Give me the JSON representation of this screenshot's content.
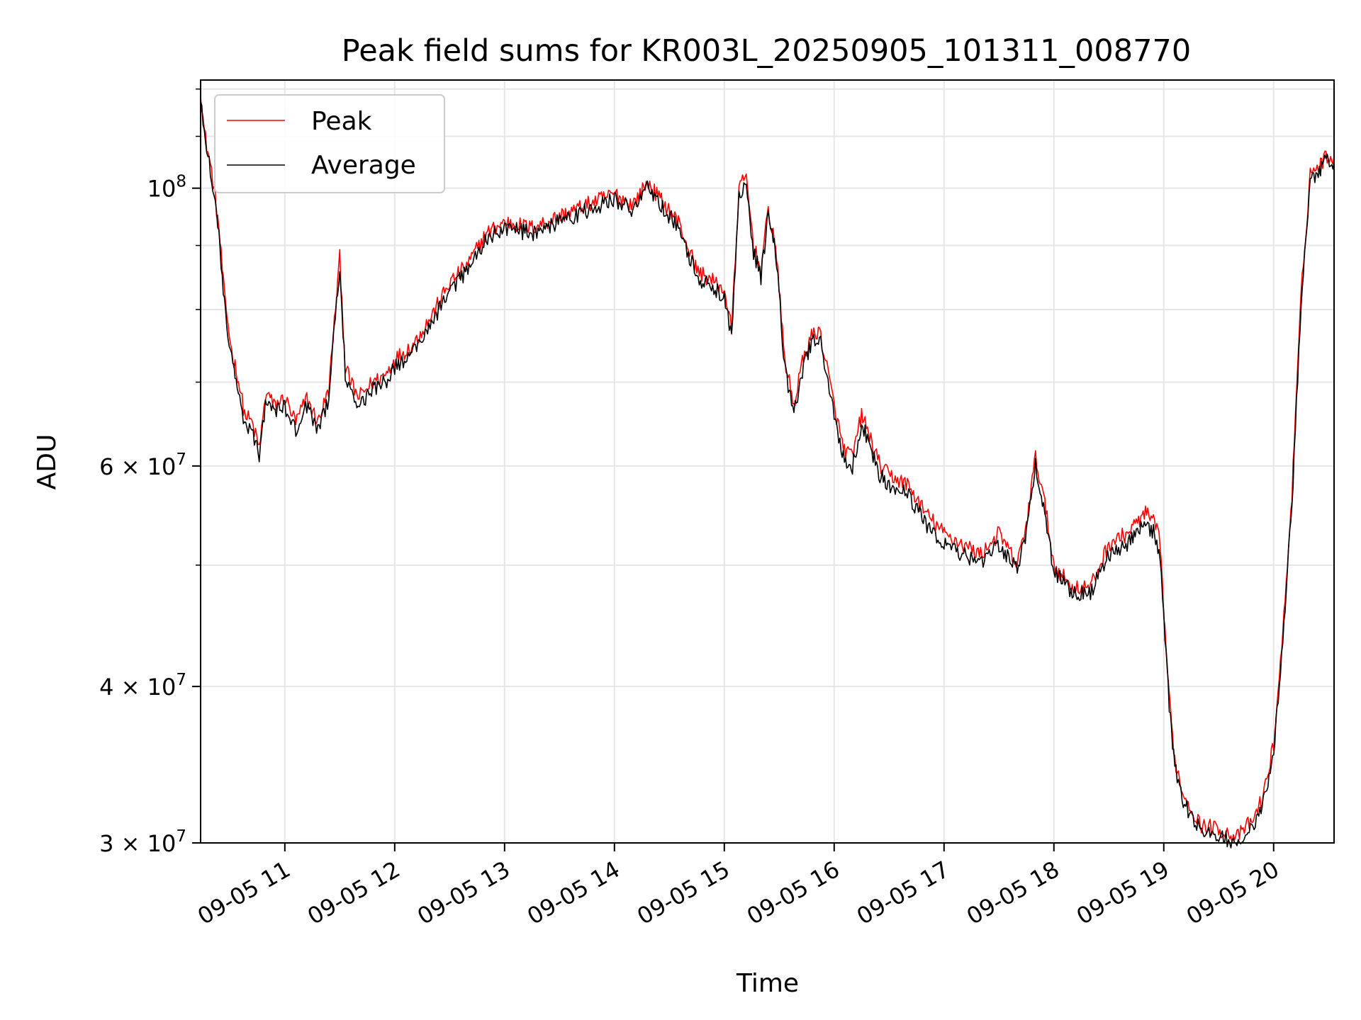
{
  "chart_data": {
    "type": "line",
    "title": "Peak field sums for KR003L_20250905_101311_008770",
    "xlabel": "Time",
    "ylabel": "ADU",
    "yscale": "log",
    "ylim": [
      30000000,
      122000000
    ],
    "xlim": [
      "09-05 10:14",
      "09-05 20:33"
    ],
    "grid": true,
    "legend": {
      "placement": "top-left",
      "entries": [
        "Peak",
        "Average"
      ]
    },
    "x_ticks": [
      "09-05 11",
      "09-05 12",
      "09-05 13",
      "09-05 14",
      "09-05 15",
      "09-05 16",
      "09-05 17",
      "09-05 18",
      "09-05 19",
      "09-05 20"
    ],
    "y_ticks": [
      {
        "value": 100000000,
        "base": "10",
        "exp": "8"
      },
      {
        "value": 60000000,
        "base": "6 × 10",
        "exp": "7"
      },
      {
        "value": 40000000,
        "base": "4 × 10",
        "exp": "7"
      },
      {
        "value": 30000000,
        "base": "3 × 10",
        "exp": "7"
      }
    ],
    "colors": {
      "Peak": "#ff0000",
      "Average": "#000000"
    },
    "x": [
      "09-05 10:14",
      "09-05 10:16",
      "09-05 10:20",
      "09-05 10:24",
      "09-05 10:27",
      "09-05 10:31",
      "09-05 10:34",
      "09-05 10:38",
      "09-05 10:42",
      "09-05 10:46",
      "09-05 10:50",
      "09-05 10:54",
      "09-05 11:00",
      "09-05 11:06",
      "09-05 11:12",
      "09-05 11:18",
      "09-05 11:24",
      "09-05 11:27",
      "09-05 11:30",
      "09-05 11:33",
      "09-05 11:36",
      "09-05 11:40",
      "09-05 11:48",
      "09-05 11:55",
      "09-05 12:00",
      "09-05 12:10",
      "09-05 12:20",
      "09-05 12:30",
      "09-05 12:40",
      "09-05 12:50",
      "09-05 13:00",
      "09-05 13:15",
      "09-05 13:30",
      "09-05 13:45",
      "09-05 14:00",
      "09-05 14:10",
      "09-05 14:18",
      "09-05 14:25",
      "09-05 14:35",
      "09-05 14:45",
      "09-05 14:55",
      "09-05 15:00",
      "09-05 15:04",
      "09-05 15:08",
      "09-05 15:12",
      "09-05 15:16",
      "09-05 15:20",
      "09-05 15:24",
      "09-05 15:28",
      "09-05 15:33",
      "09-05 15:38",
      "09-05 15:42",
      "09-05 15:47",
      "09-05 15:52",
      "09-05 15:56",
      "09-05 16:00",
      "09-05 16:05",
      "09-05 16:10",
      "09-05 16:15",
      "09-05 16:20",
      "09-05 16:25",
      "09-05 16:30",
      "09-05 16:40",
      "09-05 16:50",
      "09-05 17:00",
      "09-05 17:10",
      "09-05 17:20",
      "09-05 17:30",
      "09-05 17:40",
      "09-05 17:45",
      "09-05 17:50",
      "09-05 17:55",
      "09-05 18:00",
      "09-05 18:10",
      "09-05 18:20",
      "09-05 18:30",
      "09-05 18:40",
      "09-05 18:45",
      "09-05 18:50",
      "09-05 18:55",
      "09-05 18:58",
      "09-05 19:00",
      "09-05 19:03",
      "09-05 19:06",
      "09-05 19:10",
      "09-05 19:20",
      "09-05 19:30",
      "09-05 19:40",
      "09-05 19:50",
      "09-05 19:55",
      "09-05 20:00",
      "09-05 20:05",
      "09-05 20:10",
      "09-05 20:15",
      "09-05 20:20",
      "09-05 20:25",
      "09-05 20:28",
      "09-05 20:33"
    ],
    "series": [
      {
        "name": "Peak",
        "values": [
          120000000,
          111000000,
          103000000,
          93000000,
          82000000,
          74000000,
          71000000,
          66000000,
          65000000,
          62000000,
          69000000,
          67000000,
          68000000,
          65000000,
          68000000,
          65000000,
          69000000,
          78000000,
          88000000,
          72000000,
          70000000,
          68000000,
          70000000,
          71000000,
          73000000,
          75000000,
          79000000,
          84000000,
          87000000,
          92000000,
          94000000,
          93000000,
          95000000,
          97000000,
          99000000,
          97000000,
          101000000,
          98000000,
          94000000,
          86000000,
          84000000,
          83000000,
          77000000,
          100000000,
          102000000,
          90000000,
          86000000,
          96000000,
          90000000,
          73000000,
          67000000,
          72000000,
          76000000,
          77000000,
          72000000,
          67000000,
          62000000,
          61000000,
          66000000,
          63000000,
          60000000,
          59000000,
          58000000,
          55000000,
          53000000,
          52000000,
          51000000,
          53000000,
          50000000,
          54000000,
          61000000,
          56000000,
          50000000,
          48000000,
          48000000,
          52000000,
          53000000,
          54000000,
          55000000,
          54000000,
          52000000,
          46000000,
          39000000,
          35000000,
          33000000,
          31000000,
          30800000,
          30300000,
          31500000,
          33000000,
          36000000,
          44000000,
          57000000,
          82000000,
          103000000,
          104000000,
          106000000,
          106000000
        ]
      },
      {
        "name": "Average",
        "values": [
          119000000,
          110000000,
          102000000,
          92000000,
          81000000,
          73000000,
          70000000,
          65000000,
          64000000,
          61000000,
          68000000,
          66000000,
          67000000,
          64000000,
          67000000,
          64000000,
          68000000,
          77000000,
          87000000,
          71000000,
          69000000,
          67000000,
          69000000,
          70000000,
          72000000,
          74000000,
          78000000,
          83000000,
          86000000,
          91000000,
          93000000,
          92000000,
          94000000,
          96000000,
          98000000,
          96000000,
          100000000,
          97000000,
          93000000,
          85000000,
          83000000,
          82000000,
          76000000,
          99000000,
          101000000,
          89000000,
          85000000,
          95000000,
          89000000,
          72000000,
          66000000,
          71000000,
          75000000,
          76000000,
          71000000,
          66000000,
          61000000,
          60000000,
          65000000,
          62000000,
          59000000,
          58000000,
          57000000,
          54000000,
          52000000,
          51000000,
          50000000,
          52000000,
          49500000,
          53000000,
          60000000,
          55000000,
          49500000,
          47500000,
          47500000,
          51000000,
          52000000,
          53000000,
          54000000,
          53000000,
          51000000,
          45500000,
          38500000,
          34500000,
          32500000,
          30700000,
          30400000,
          30000000,
          31000000,
          32500000,
          35500000,
          43500000,
          56000000,
          81000000,
          102000000,
          103000000,
          105000000,
          105000000
        ]
      }
    ]
  }
}
